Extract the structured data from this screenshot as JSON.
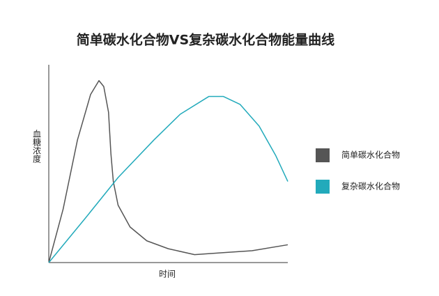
{
  "chart_data": {
    "type": "line",
    "title": "简单碳水化合物VS复杂碳水化合物能量曲线",
    "x_label": "时间",
    "y_label": "血糖浓度",
    "xlim": [
      0,
      100
    ],
    "ylim": [
      0,
      100
    ],
    "series": [
      {
        "name": "简单碳水化合物",
        "color": "#555555",
        "x": [
          0,
          6,
          12,
          17.5,
          21,
          23,
          25,
          26,
          27,
          29,
          34,
          41,
          50,
          61,
          73,
          85,
          100
        ],
        "values": [
          0,
          27,
          62,
          85,
          92,
          89,
          76,
          55,
          41,
          29,
          18,
          11,
          7,
          4,
          5,
          6,
          9
        ]
      },
      {
        "name": "复杂碳水化合物",
        "color": "#22aabb",
        "x": [
          0,
          15,
          29,
          44,
          55,
          67,
          73,
          80,
          88,
          95,
          100
        ],
        "values": [
          0,
          22,
          43,
          62,
          75,
          84,
          84,
          80,
          69,
          54,
          41
        ]
      }
    ]
  }
}
